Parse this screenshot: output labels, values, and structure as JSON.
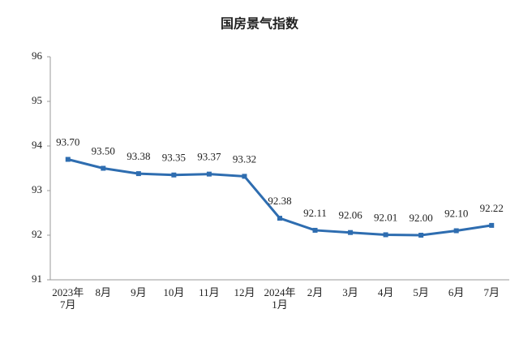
{
  "chart_data": {
    "type": "line",
    "title": "国房景气指数",
    "categories": [
      "2023年\n7月",
      "8月",
      "9月",
      "10月",
      "11月",
      "12月",
      "2024年\n1月",
      "2月",
      "3月",
      "4月",
      "5月",
      "6月",
      "7月"
    ],
    "values": [
      93.7,
      93.5,
      93.38,
      93.35,
      93.37,
      93.32,
      92.38,
      92.11,
      92.06,
      92.01,
      92.0,
      92.1,
      92.22
    ],
    "value_labels": [
      "93.70",
      "93.50",
      "93.38",
      "93.35",
      "93.37",
      "93.32",
      "92.38",
      "92.11",
      "92.06",
      "92.01",
      "92.00",
      "92.10",
      "92.22"
    ],
    "color": "#2e6db0",
    "ylim": [
      91,
      96
    ],
    "yticks": [
      91,
      92,
      93,
      94,
      95,
      96
    ],
    "grid": false
  }
}
